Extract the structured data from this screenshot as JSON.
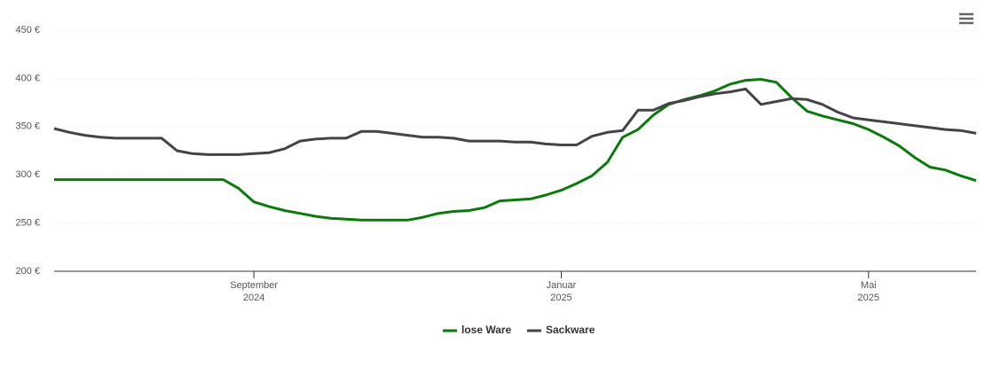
{
  "chart_data": {
    "type": "line",
    "categories": [
      null,
      null,
      null,
      null,
      null,
      null,
      null,
      null,
      null,
      null,
      null,
      null,
      null,
      "September 2024",
      null,
      null,
      null,
      null,
      null,
      null,
      null,
      null,
      null,
      null,
      null,
      null,
      null,
      null,
      null,
      null,
      null,
      null,
      null,
      "Januar 2025",
      null,
      null,
      null,
      null,
      null,
      null,
      null,
      null,
      null,
      null,
      null,
      null,
      null,
      null,
      null,
      null,
      null,
      null,
      null,
      "Mai 2025",
      null,
      null,
      null,
      null,
      null,
      null,
      null
    ],
    "series": [
      {
        "name": "lose Ware",
        "color": "#0a7a0a",
        "values": [
          295,
          295,
          295,
          295,
          295,
          295,
          295,
          295,
          295,
          295,
          295,
          295,
          286,
          272,
          267,
          263,
          260,
          257,
          255,
          254,
          253,
          253,
          253,
          253,
          256,
          260,
          262,
          263,
          266,
          273,
          274,
          275,
          279,
          284,
          291,
          299,
          313,
          339,
          347,
          362,
          373,
          378,
          382,
          387,
          394,
          398,
          399,
          396,
          380,
          366,
          361,
          357,
          353,
          347,
          339,
          330,
          318,
          308,
          305,
          299,
          294
        ]
      },
      {
        "name": "Sackware",
        "color": "#434348",
        "values": [
          348,
          344,
          341,
          339,
          338,
          338,
          338,
          338,
          325,
          322,
          321,
          321,
          321,
          322,
          323,
          327,
          335,
          337,
          338,
          338,
          345,
          345,
          343,
          341,
          339,
          339,
          338,
          335,
          335,
          335,
          334,
          334,
          332,
          331,
          331,
          340,
          344,
          346,
          367,
          367,
          374,
          377,
          381,
          384,
          386,
          389,
          373,
          376,
          379,
          378,
          373,
          365,
          359,
          357,
          355,
          353,
          351,
          349,
          347,
          346,
          343
        ]
      }
    ],
    "ylim": [
      200,
      450
    ],
    "yticks": [
      {
        "value": 200,
        "label": "200 €"
      },
      {
        "value": 250,
        "label": "250 €"
      },
      {
        "value": 300,
        "label": "300 €"
      },
      {
        "value": 350,
        "label": "350 €"
      },
      {
        "value": 400,
        "label": "400 €"
      },
      {
        "value": 450,
        "label": "450 €"
      }
    ],
    "grid": true,
    "legend": "bottom"
  }
}
